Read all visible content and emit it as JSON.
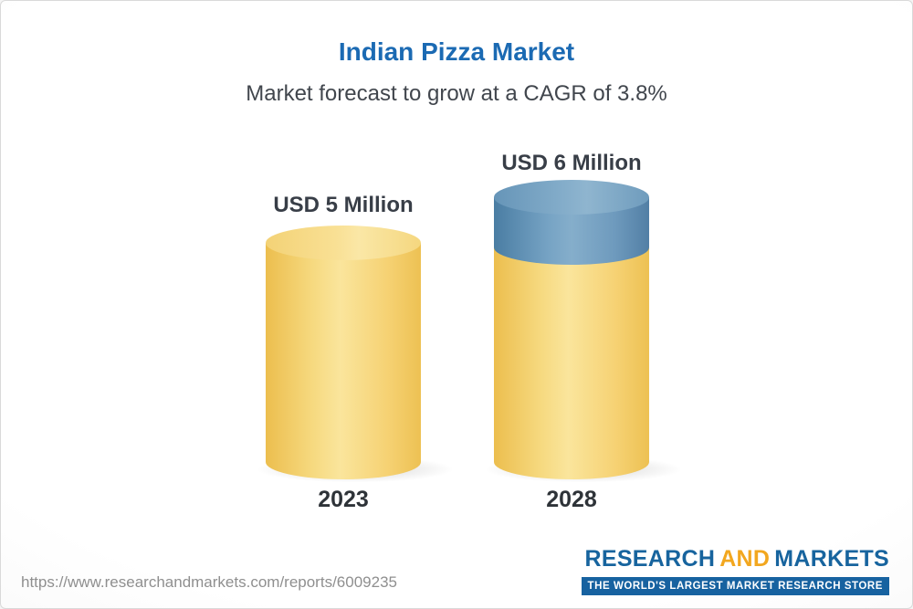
{
  "title": "Indian Pizza Market",
  "subtitle": "Market forecast to grow at a CAGR of 3.8%",
  "chart_data": {
    "type": "bar",
    "bar_style": "3d-cylinder",
    "categories": [
      "2023",
      "2028"
    ],
    "values": [
      5,
      6
    ],
    "value_labels": [
      "USD 5 Million",
      "USD 6 Million"
    ],
    "unit": "USD Million",
    "cagr": "3.8%",
    "title": "Indian Pizza Market",
    "subtitle": "Market forecast to grow at a CAGR of 3.8%",
    "legend": "none",
    "grid": "off",
    "colors": {
      "bar_base": "#f5cf68",
      "growth_segment": "#6e9abd",
      "title_text": "#1b6ab3",
      "label_text": "#383e47"
    }
  },
  "footer": {
    "url": "https://www.researchandmarkets.com/reports/6009235",
    "logo": {
      "part1": "RESEARCH",
      "part2": "AND",
      "part3": "MARKETS",
      "tagline": "THE WORLD'S LARGEST MARKET RESEARCH STORE"
    }
  }
}
